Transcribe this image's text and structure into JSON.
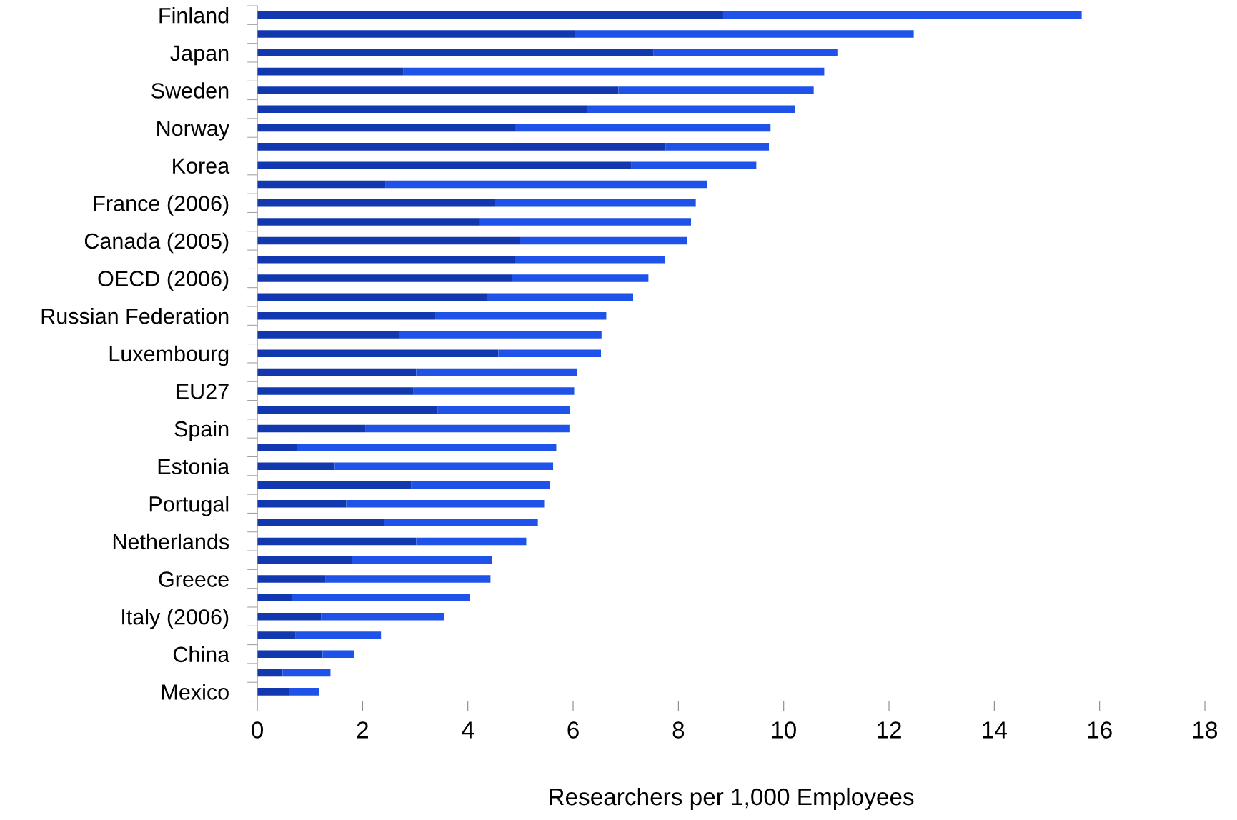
{
  "chart_data": {
    "type": "bar",
    "orientation": "horizontal",
    "stacked": true,
    "xlabel": "Researchers per 1,000 Employees",
    "categories": [
      "Finland",
      null,
      "Japan",
      null,
      "Sweden",
      null,
      "Norway",
      null,
      "Korea",
      null,
      "France (2006)",
      null,
      "Canada (2005)",
      null,
      "OECD (2006)",
      null,
      "Russian Federation",
      null,
      "Luxembourg",
      null,
      "EU27",
      null,
      "Spain",
      null,
      "Estonia",
      null,
      "Portugal",
      null,
      "Netherlands",
      null,
      "Greece",
      null,
      "Italy (2006)",
      null,
      "China",
      null,
      "Mexico"
    ],
    "series": [
      {
        "color": "#1238b0",
        "values": [
          8.85,
          6.03,
          7.53,
          2.77,
          6.86,
          6.27,
          4.9,
          7.76,
          7.11,
          2.44,
          4.51,
          4.22,
          4.99,
          4.9,
          4.84,
          4.36,
          3.38,
          2.7,
          4.58,
          3.02,
          2.96,
          3.43,
          2.05,
          0.75,
          1.47,
          2.92,
          1.69,
          2.41,
          3.02,
          1.8,
          1.29,
          0.66,
          1.21,
          0.72,
          1.24,
          0.48,
          0.61
        ]
      },
      {
        "color": "#1e52e8",
        "values": [
          6.81,
          6.44,
          3.49,
          8.0,
          3.71,
          3.94,
          4.85,
          1.96,
          2.37,
          6.11,
          3.82,
          4.02,
          3.17,
          2.84,
          2.59,
          2.78,
          3.25,
          3.84,
          1.95,
          3.06,
          3.06,
          2.51,
          3.88,
          4.93,
          4.15,
          2.64,
          3.76,
          2.92,
          2.09,
          2.66,
          3.14,
          3.38,
          2.34,
          1.63,
          0.6,
          0.91,
          0.57
        ]
      }
    ],
    "xlim": [
      0,
      18
    ],
    "xticks": [
      0,
      2,
      4,
      6,
      8,
      10,
      12,
      14,
      16,
      18
    ],
    "grid": false,
    "legend": false
  }
}
